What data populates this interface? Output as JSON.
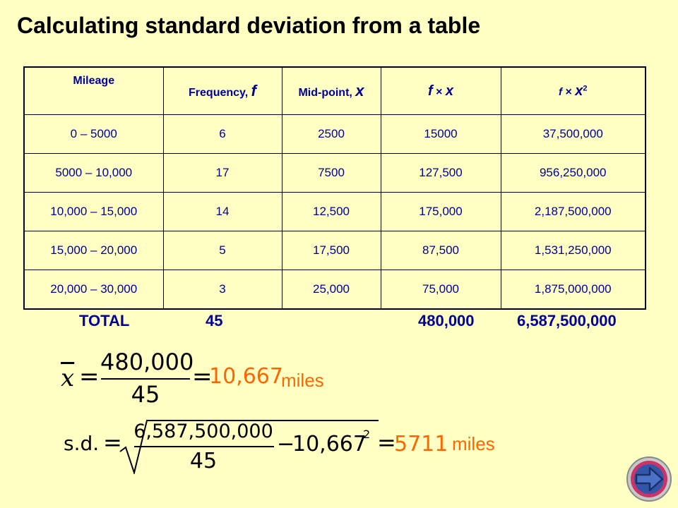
{
  "title": "Calculating standard deviation from a table",
  "table": {
    "headers": {
      "mileage": "Mileage",
      "frequency_text": "Frequency, ",
      "frequency_sym": "f",
      "midpoint_text": "Mid-point, ",
      "midpoint_sym": "x",
      "fx_f": "f",
      "fx_times": " × ",
      "fx_x": "x",
      "fx2_f": "f",
      "fx2_times": " × ",
      "fx2_x": "x",
      "fx2_pow": "2"
    },
    "rows": [
      [
        "0 – 5000",
        "6",
        "2500",
        "15000",
        "37,500,000"
      ],
      [
        "5000 – 10,000",
        "17",
        "7500",
        "127,500",
        "956,250,000"
      ],
      [
        "10,000 – 15,000",
        "14",
        "12,500",
        "175,000",
        "2,187,500,000"
      ],
      [
        "15,000 – 20,000",
        "5",
        "17,500",
        "87,500",
        "1,531,250,000"
      ],
      [
        "20,000 – 30,000",
        "3",
        "25,000",
        "75,000",
        "1,875,000,000"
      ]
    ]
  },
  "totals": {
    "label": "TOTAL",
    "frequency": "45",
    "fx": "480,000",
    "fx2": "6,587,500,000"
  },
  "mean_formula": {
    "symbol": "x",
    "equals": "=",
    "numerator": "480,000",
    "denominator": "45",
    "result": "10,667",
    "unit": "miles"
  },
  "sd_formula": {
    "symbol": "s.d.",
    "equals": "=",
    "numerator": "6,587,500,000",
    "denominator": "45",
    "minus": "−",
    "subtract_value": "10,667",
    "subtract_pow": "2",
    "result": "5711",
    "unit": "miles"
  },
  "colors": {
    "background": "#ffffc4",
    "table_text": "#000099",
    "result": "#ff6600"
  },
  "nav": {
    "icon": "next-arrow-icon"
  }
}
